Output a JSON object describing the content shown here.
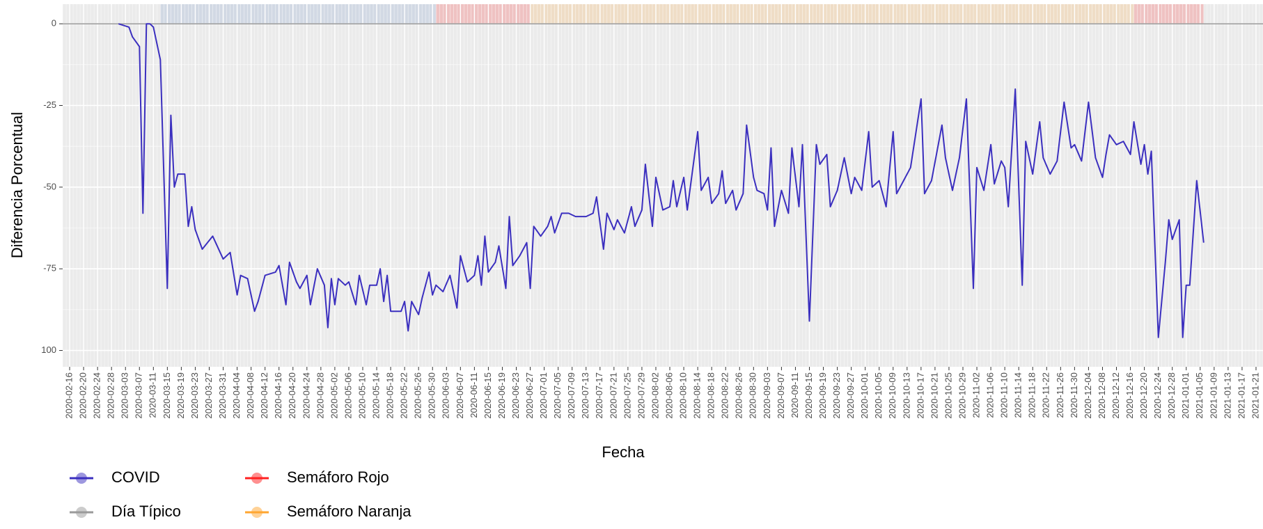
{
  "chart_data": {
    "type": "line",
    "x_label": "Fecha",
    "y_label": "Diferencia Porcentual",
    "xlim": [
      "2020-02-14",
      "2021-01-23"
    ],
    "ylim": [
      -105,
      6
    ],
    "yticks": [
      0,
      -25,
      -50,
      -75,
      {
        "value": -100,
        "label": "100"
      }
    ],
    "xticks": [
      "2020-02-16",
      "2020-02-20",
      "2020-02-24",
      "2020-02-28",
      "2020-03-03",
      "2020-03-07",
      "2020-03-11",
      "2020-03-15",
      "2020-03-19",
      "2020-03-23",
      "2020-03-27",
      "2020-03-31",
      "2020-04-04",
      "2020-04-08",
      "2020-04-12",
      "2020-04-16",
      "2020-04-20",
      "2020-04-24",
      "2020-04-28",
      "2020-05-02",
      "2020-05-06",
      "2020-05-10",
      "2020-05-14",
      "2020-05-18",
      "2020-05-22",
      "2020-05-26",
      "2020-05-30",
      "2020-06-03",
      "2020-06-07",
      "2020-06-11",
      "2020-06-15",
      "2020-06-19",
      "2020-06-23",
      "2020-06-27",
      "2020-07-01",
      "2020-07-05",
      "2020-07-09",
      "2020-07-13",
      "2020-07-17",
      "2020-07-21",
      "2020-07-25",
      "2020-07-29",
      "2020-08-02",
      "2020-08-06",
      "2020-08-10",
      "2020-08-14",
      "2020-08-18",
      "2020-08-22",
      "2020-08-26",
      "2020-08-30",
      "2020-09-03",
      "2020-09-07",
      "2020-09-11",
      "2020-09-15",
      "2020-09-19",
      "2020-09-23",
      "2020-09-27",
      "2020-10-01",
      "2020-10-05",
      "2020-10-09",
      "2020-10-13",
      "2020-10-17",
      "2020-10-21",
      "2020-10-25",
      "2020-10-29",
      "2020-11-02",
      "2020-11-06",
      "2020-11-10",
      "2020-11-14",
      "2020-11-18",
      "2020-11-22",
      "2020-11-26",
      "2020-11-30",
      "2020-12-04",
      "2020-12-08",
      "2020-12-12",
      "2020-12-16",
      "2020-12-20",
      "2020-12-24",
      "2020-12-28",
      "2021-01-01",
      "2021-01-05",
      "2021-01-09",
      "2021-01-13",
      "2021-01-17",
      "2021-01-21"
    ],
    "grid": true,
    "series": [
      {
        "name": "COVID",
        "color": "#3b2fbf",
        "shade": {
          "color": "#6f8fc6",
          "spans": [
            [
              "2020-03-13",
              "2020-05-31"
            ]
          ]
        },
        "x": [
          "2020-03-01",
          "2020-03-04",
          "2020-03-05",
          "2020-03-07",
          "2020-03-08",
          "2020-03-09",
          "2020-03-10",
          "2020-03-11",
          "2020-03-13",
          "2020-03-15",
          "2020-03-16",
          "2020-03-17",
          "2020-03-18",
          "2020-03-20",
          "2020-03-21",
          "2020-03-22",
          "2020-03-23",
          "2020-03-25",
          "2020-03-28",
          "2020-03-31",
          "2020-04-02",
          "2020-04-04",
          "2020-04-05",
          "2020-04-07",
          "2020-04-09",
          "2020-04-10",
          "2020-04-12",
          "2020-04-15",
          "2020-04-16",
          "2020-04-18",
          "2020-04-19",
          "2020-04-21",
          "2020-04-22",
          "2020-04-24",
          "2020-04-25",
          "2020-04-27",
          "2020-04-29",
          "2020-04-30",
          "2020-05-01",
          "2020-05-02",
          "2020-05-03",
          "2020-05-05",
          "2020-05-06",
          "2020-05-08",
          "2020-05-09",
          "2020-05-11",
          "2020-05-12",
          "2020-05-14",
          "2020-05-15",
          "2020-05-16",
          "2020-05-17",
          "2020-05-18",
          "2020-05-21",
          "2020-05-22",
          "2020-05-23",
          "2020-05-24",
          "2020-05-26",
          "2020-05-27",
          "2020-05-29",
          "2020-05-30",
          "2020-05-31",
          "2020-06-02",
          "2020-06-04",
          "2020-06-06",
          "2020-06-07",
          "2020-06-09",
          "2020-06-11",
          "2020-06-12",
          "2020-06-13",
          "2020-06-14",
          "2020-06-15",
          "2020-06-17",
          "2020-06-18",
          "2020-06-20",
          "2020-06-21",
          "2020-06-22",
          "2020-06-24",
          "2020-06-26",
          "2020-06-27",
          "2020-06-28",
          "2020-06-30",
          "2020-07-02",
          "2020-07-03",
          "2020-07-04",
          "2020-07-06",
          "2020-07-08",
          "2020-07-10",
          "2020-07-11",
          "2020-07-13",
          "2020-07-15",
          "2020-07-16",
          "2020-07-18",
          "2020-07-19",
          "2020-07-21",
          "2020-07-22",
          "2020-07-24",
          "2020-07-26",
          "2020-07-27",
          "2020-07-29",
          "2020-07-30",
          "2020-08-01",
          "2020-08-02",
          "2020-08-04",
          "2020-08-06",
          "2020-08-07",
          "2020-08-08",
          "2020-08-10",
          "2020-08-11",
          "2020-08-14",
          "2020-08-15",
          "2020-08-17",
          "2020-08-18",
          "2020-08-20",
          "2020-08-21",
          "2020-08-22",
          "2020-08-24",
          "2020-08-25",
          "2020-08-27",
          "2020-08-28",
          "2020-08-30",
          "2020-08-31",
          "2020-09-02",
          "2020-09-03",
          "2020-09-04",
          "2020-09-05",
          "2020-09-07",
          "2020-09-09",
          "2020-09-10",
          "2020-09-12",
          "2020-09-13",
          "2020-09-15",
          "2020-09-17",
          "2020-09-18",
          "2020-09-20",
          "2020-09-21",
          "2020-09-23",
          "2020-09-25",
          "2020-09-27",
          "2020-09-28",
          "2020-09-30",
          "2020-10-02",
          "2020-10-03",
          "2020-10-05",
          "2020-10-07",
          "2020-10-09",
          "2020-10-10",
          "2020-10-12",
          "2020-10-14",
          "2020-10-17",
          "2020-10-18",
          "2020-10-20",
          "2020-10-23",
          "2020-10-24",
          "2020-10-26",
          "2020-10-28",
          "2020-10-30",
          "2020-11-01",
          "2020-11-02",
          "2020-11-04",
          "2020-11-06",
          "2020-11-07",
          "2020-11-09",
          "2020-11-10",
          "2020-11-11",
          "2020-11-13",
          "2020-11-15",
          "2020-11-16",
          "2020-11-18",
          "2020-11-20",
          "2020-11-21",
          "2020-11-23",
          "2020-11-25",
          "2020-11-27",
          "2020-11-29",
          "2020-11-30",
          "2020-12-02",
          "2020-12-04",
          "2020-12-06",
          "2020-12-08",
          "2020-12-09",
          "2020-12-10",
          "2020-12-12",
          "2020-12-14",
          "2020-12-16",
          "2020-12-17",
          "2020-12-19",
          "2020-12-20",
          "2020-12-21",
          "2020-12-22",
          "2020-12-24",
          "2020-12-26",
          "2020-12-27",
          "2020-12-28",
          "2020-12-30",
          "2020-12-31",
          "2021-01-01",
          "2021-01-02",
          "2021-01-04",
          "2021-01-06"
        ],
        "values": [
          0,
          -1,
          -4,
          -7,
          -58,
          0,
          0,
          -1,
          -11,
          -81,
          -28,
          -50,
          -46,
          -46,
          -62,
          -56,
          -63,
          -69,
          -65,
          -72,
          -70,
          -83,
          -77,
          -78,
          -88,
          -85,
          -77,
          -76,
          -74,
          -86,
          -73,
          -79,
          -81,
          -77,
          -86,
          -75,
          -80,
          -93,
          -78,
          -86,
          -78,
          -80,
          -79,
          -86,
          -77,
          -86,
          -80,
          -80,
          -75,
          -85,
          -77,
          -88,
          -88,
          -85,
          -94,
          -85,
          -89,
          -84,
          -76,
          -83,
          -80,
          -82,
          -77,
          -87,
          -71,
          -79,
          -77,
          -71,
          -80,
          -65,
          -76,
          -73,
          -68,
          -81,
          -59,
          -74,
          -71,
          -67,
          -81,
          -62,
          -65,
          -62,
          -59,
          -64,
          -58,
          -58,
          -59,
          -59,
          -59,
          -58,
          -53,
          -69,
          -58,
          -63,
          -60,
          -64,
          -56,
          -62,
          -57,
          -43,
          -62,
          -47,
          -57,
          -56,
          -48,
          -56,
          -47,
          -57,
          -33,
          -51,
          -47,
          -55,
          -52,
          -45,
          -55,
          -51,
          -57,
          -52,
          -31,
          -47,
          -51,
          -52,
          -57,
          -38,
          -62,
          -51,
          -58,
          -38,
          -56,
          -37,
          -91,
          -37,
          -43,
          -40,
          -56,
          -51,
          -41,
          -52,
          -47,
          -51,
          -33,
          -50,
          -48,
          -56,
          -33,
          -52,
          -48,
          -44,
          -23,
          -52,
          -48,
          -31,
          -41,
          -51,
          -41,
          -23,
          -81,
          -44,
          -51,
          -37,
          -49,
          -42,
          -44,
          -56,
          -20,
          -80,
          -36,
          -46,
          -30,
          -41,
          -46,
          -42,
          -24,
          -38,
          -37,
          -42,
          -24,
          -41,
          -47,
          -40,
          -34,
          -37,
          -36,
          -40,
          -30,
          -43,
          -37,
          -46,
          -39,
          -96,
          -73,
          -60,
          -66,
          -60,
          -96,
          -80,
          -80,
          -48,
          -67
        ]
      },
      {
        "name": "Día Típico",
        "color": "#9a9a9a",
        "x": [
          "2020-02-14",
          "2021-01-23"
        ],
        "values": [
          0,
          0
        ]
      }
    ],
    "regions": [
      {
        "name": "Semáforo Rojo",
        "color": "#ff2020",
        "spans": [
          [
            "2020-05-31",
            "2020-06-27"
          ],
          [
            "2020-12-17",
            "2021-01-06"
          ]
        ]
      },
      {
        "name": "Semáforo Naranja",
        "color": "#ffa630",
        "spans": [
          [
            "2020-06-27",
            "2020-12-17"
          ]
        ]
      }
    ]
  }
}
